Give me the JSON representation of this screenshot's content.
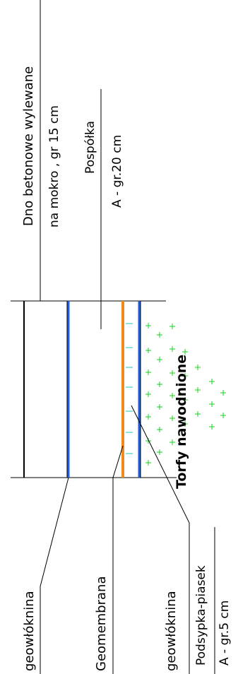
{
  "labels": {
    "concrete_line1": "Dno betonowe wylewane",
    "concrete_line2": "na mokro , gr 15 cm",
    "pospolka_line1": "Pospółka",
    "pospolka_line2": "A - gr.20 cm",
    "peat": "Torfy nawodnione",
    "geowloknina_top": "geowłóknina",
    "geomembrana": "Geomembrana",
    "geowloknina_bottom": "geowłóknina",
    "podsypka_line1": "Podsypka-piasek",
    "podsypka_line2": "A - gr.5 cm"
  },
  "colors": {
    "line": "#000000",
    "geotextile": "#1f5fe0",
    "geomembrane": "#f08a1c",
    "sand_hatch": "#19c7b8",
    "peat_hatch": "#19d219"
  }
}
